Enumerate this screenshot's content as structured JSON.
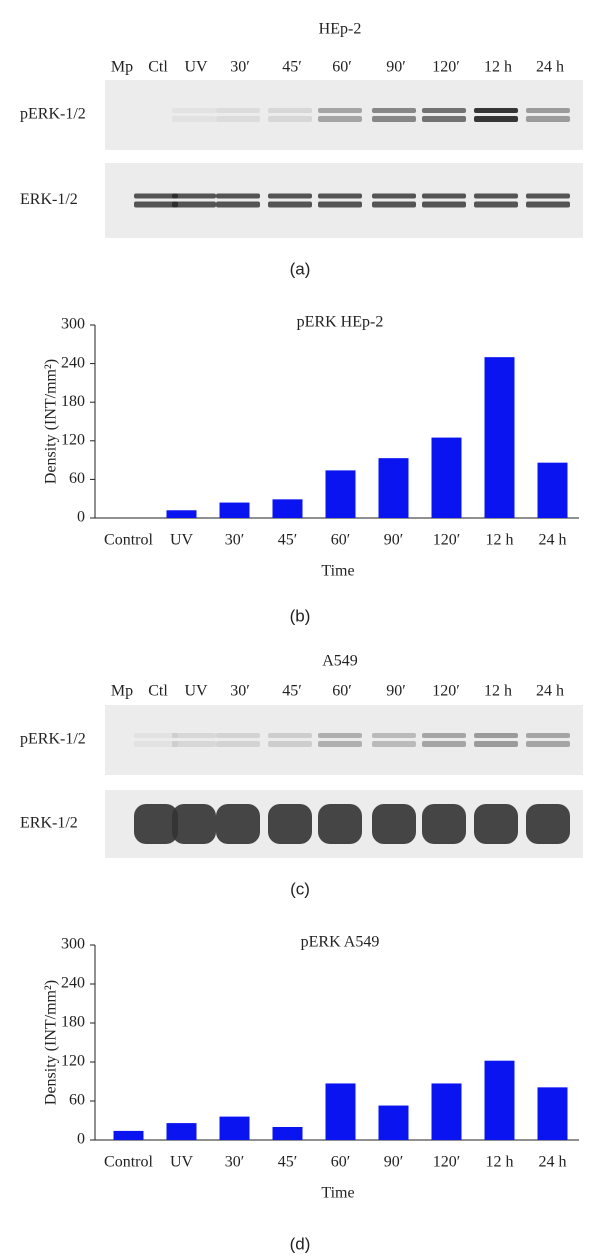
{
  "blots": [
    {
      "title": "HEp-2",
      "lanes": [
        "Mp",
        "Ctl",
        "UV",
        "30′",
        "45′",
        "60′",
        "90′",
        "120′",
        "12 h",
        "24 h"
      ],
      "rows": [
        "pERK-1/2",
        "ERK-1/2"
      ],
      "caption": "(a)"
    },
    {
      "title": "A549",
      "lanes": [
        "Mp",
        "Ctl",
        "UV",
        "30′",
        "45′",
        "60′",
        "90′",
        "120′",
        "12 h",
        "24 h"
      ],
      "rows": [
        "pERK-1/2",
        "ERK-1/2"
      ],
      "caption": "(c)"
    }
  ],
  "chart_data": [
    {
      "type": "bar",
      "title": "pERK HEp-2",
      "y_label": "Density (INT/mm²)",
      "x_label": "Time",
      "caption": "(b)",
      "categories": [
        "Control",
        "UV",
        "30′",
        "45′",
        "60′",
        "90′",
        "120′",
        "12 h",
        "24 h"
      ],
      "values": [
        0,
        12,
        24,
        29,
        74,
        93,
        125,
        250,
        86
      ],
      "color": "#0a14f0",
      "ylim": [
        0,
        300
      ],
      "yticks": [
        0,
        60,
        120,
        180,
        240,
        300
      ]
    },
    {
      "type": "bar",
      "title": "pERK A549",
      "y_label": "Density (INT/mm²)",
      "x_label": "Time",
      "caption": "(d)",
      "categories": [
        "Control",
        "UV",
        "30′",
        "45′",
        "60′",
        "90′",
        "120′",
        "12 h",
        "24 h"
      ],
      "values": [
        14,
        26,
        36,
        20,
        87,
        53,
        87,
        122,
        81
      ],
      "color": "#0a14f0",
      "ylim": [
        0,
        300
      ],
      "yticks": [
        0,
        60,
        120,
        180,
        240,
        300
      ]
    }
  ]
}
